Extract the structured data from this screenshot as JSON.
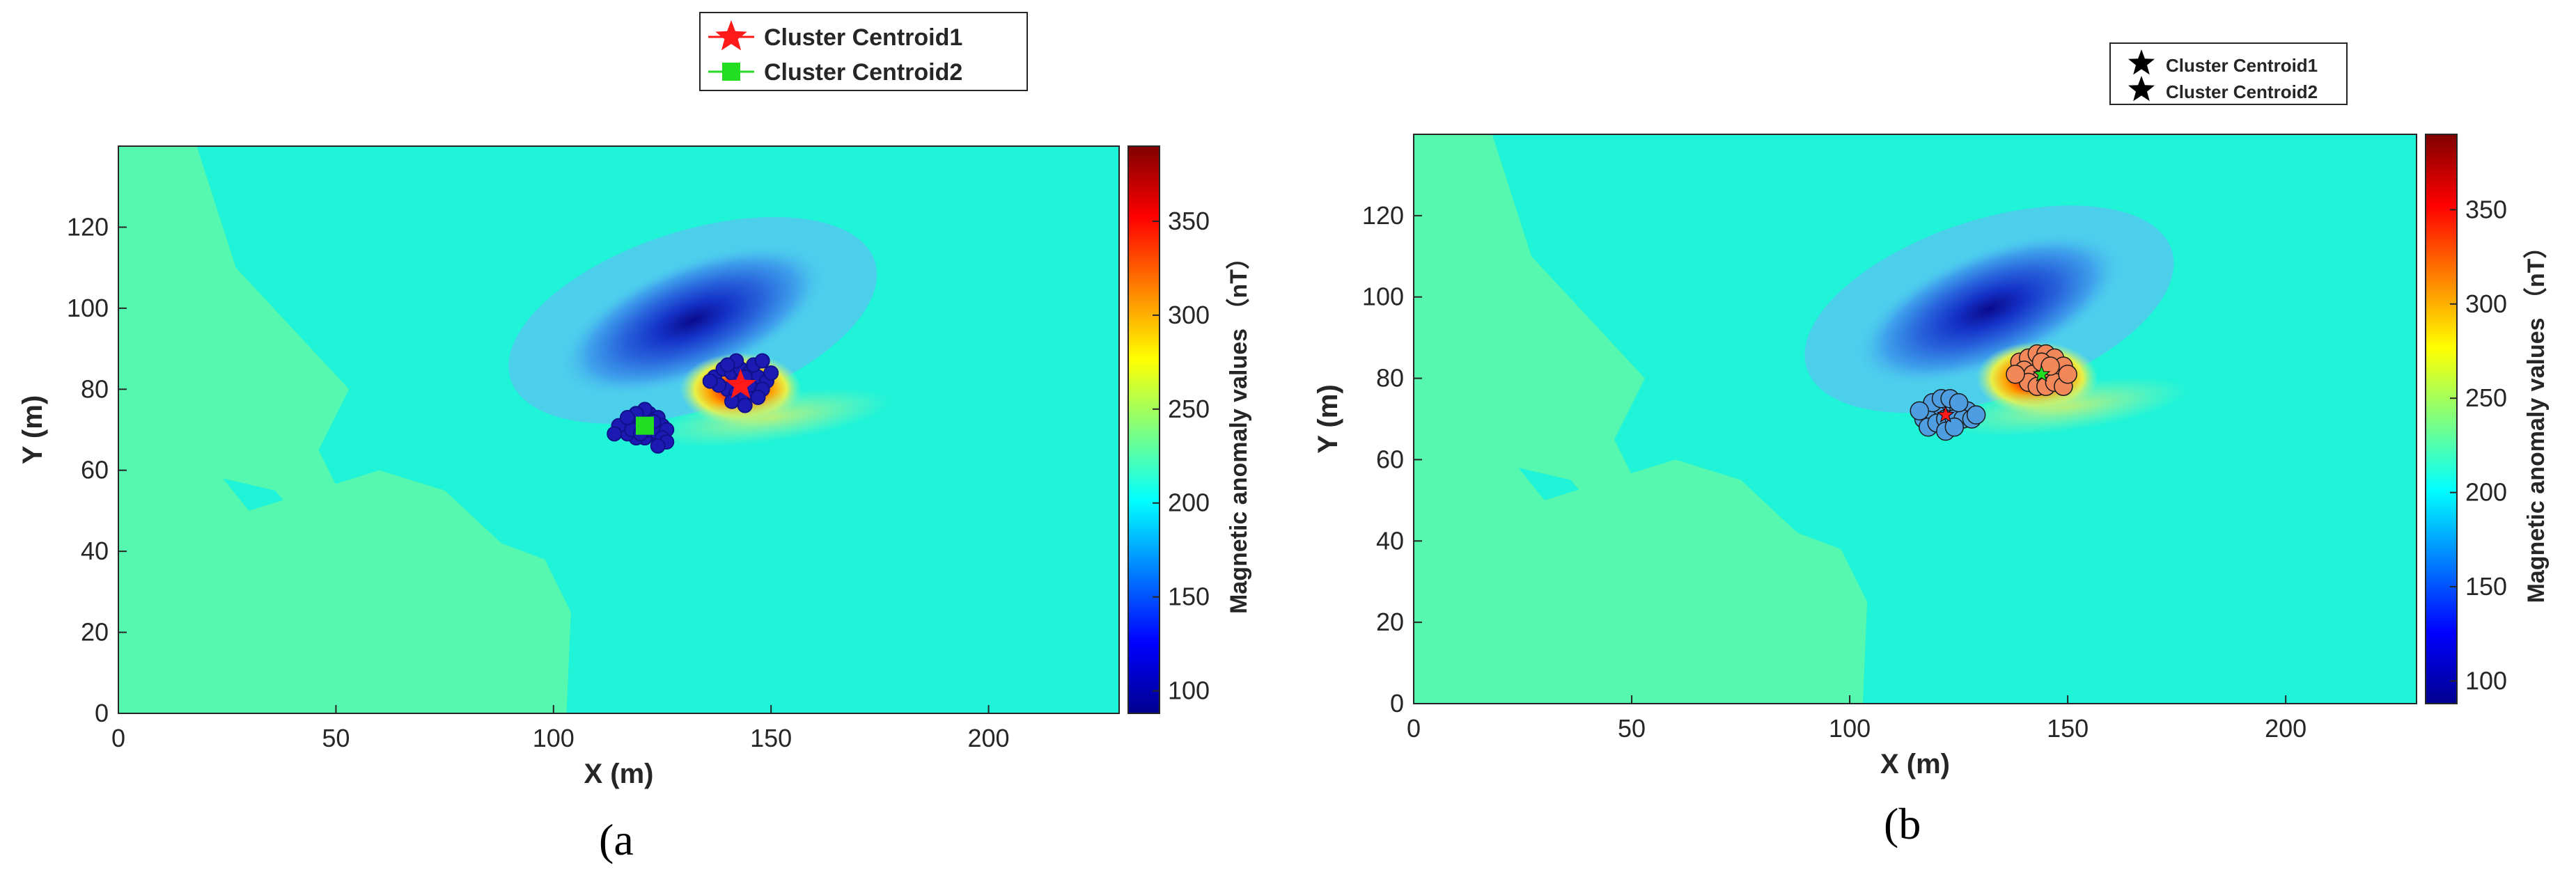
{
  "panels": [
    {
      "id": "a",
      "caption": "(a",
      "legend": [
        {
          "label": "Cluster Centroid1",
          "marker": "star",
          "color": "#ff1a1a"
        },
        {
          "label": "Cluster Centroid2",
          "marker": "square",
          "color": "#22dd22"
        }
      ]
    },
    {
      "id": "b",
      "caption": "(b",
      "legend": [
        {
          "label": "Cluster Centroid1",
          "marker": "star",
          "color": "#000000"
        },
        {
          "label": "Cluster Centroid2",
          "marker": "star",
          "color": "#000000"
        }
      ]
    }
  ],
  "chart_data": [
    {
      "type": "heatmap",
      "panel": "a",
      "title": "",
      "xlabel": "X (m)",
      "ylabel": "Y (m)",
      "xlim": [
        0,
        230
      ],
      "ylim": [
        0,
        140
      ],
      "xticks": [
        0,
        50,
        100,
        150,
        200
      ],
      "yticks": [
        0,
        20,
        40,
        60,
        80,
        100,
        120
      ],
      "colorbar": {
        "label": "Magnetic anomaly values （nT）",
        "range": [
          88,
          390
        ],
        "ticks": [
          100,
          150,
          200,
          250,
          300,
          350
        ],
        "colormap": "jet"
      },
      "background_value": 205,
      "anomalies": [
        {
          "kind": "low",
          "center": [
            132,
            97
          ],
          "value": 92
        },
        {
          "kind": "high",
          "center": [
            143,
            80
          ],
          "value": 390
        },
        {
          "kind": "moderate",
          "center": [
            128,
            68
          ],
          "value": 235
        }
      ],
      "cluster_points": [
        {
          "cluster": 1,
          "color": "#1b1bb4",
          "points": [
            [
              137,
              83
            ],
            [
              139,
              85
            ],
            [
              141,
              84
            ],
            [
              143,
              85
            ],
            [
              145,
              84
            ],
            [
              147,
              83
            ],
            [
              149,
              82
            ],
            [
              140,
              80
            ],
            [
              142,
              79
            ],
            [
              144,
              78
            ],
            [
              146,
              79
            ],
            [
              148,
              80
            ],
            [
              138,
              81
            ],
            [
              143,
              82
            ],
            [
              145,
              81
            ],
            [
              141,
              77
            ],
            [
              144,
              76
            ],
            [
              147,
              78
            ],
            [
              150,
              84
            ],
            [
              136,
              82
            ],
            [
              142,
              87
            ],
            [
              146,
              86
            ],
            [
              148,
              87
            ],
            [
              140,
              86
            ],
            [
              144,
              83
            ]
          ]
        },
        {
          "cluster": 2,
          "color": "#1b1bb4",
          "points": [
            [
              116,
              70
            ],
            [
              118,
              72
            ],
            [
              120,
              73
            ],
            [
              122,
              74
            ],
            [
              124,
              73
            ],
            [
              125,
              71
            ],
            [
              123,
              69
            ],
            [
              121,
              68
            ],
            [
              119,
              68
            ],
            [
              117,
              69
            ],
            [
              115,
              71
            ],
            [
              120,
              71
            ],
            [
              122,
              70
            ],
            [
              124,
              69
            ],
            [
              118,
              70
            ],
            [
              123,
              72
            ],
            [
              126,
              70
            ],
            [
              121,
              75
            ],
            [
              119,
              74
            ],
            [
              117,
              73
            ],
            [
              114,
              69
            ],
            [
              125,
              68
            ],
            [
              126,
              67
            ],
            [
              124,
              66
            ],
            [
              120,
              69
            ]
          ]
        }
      ],
      "centroids": [
        {
          "label": "Cluster Centroid1",
          "x": 143,
          "y": 81
        },
        {
          "label": "Cluster Centroid2",
          "x": 121,
          "y": 71
        }
      ]
    },
    {
      "type": "heatmap",
      "panel": "b",
      "title": "",
      "xlabel": "X (m)",
      "ylabel": "Y (m)",
      "xlim": [
        0,
        230
      ],
      "ylim": [
        0,
        140
      ],
      "xticks": [
        0,
        50,
        100,
        150,
        200
      ],
      "yticks": [
        0,
        20,
        40,
        60,
        80,
        100,
        120
      ],
      "colorbar": {
        "label": "Magnetic anomaly values （nT）",
        "range": [
          88,
          390
        ],
        "ticks": [
          100,
          150,
          200,
          250,
          300,
          350
        ],
        "colormap": "jet"
      },
      "background_value": 205,
      "anomalies": [
        {
          "kind": "low",
          "center": [
            132,
            97
          ],
          "value": 92
        },
        {
          "kind": "high",
          "center": [
            143,
            80
          ],
          "value": 390
        },
        {
          "kind": "moderate",
          "center": [
            128,
            68
          ],
          "value": 235
        }
      ],
      "cluster_points": [
        {
          "cluster": 1,
          "color": "#f2875a",
          "points": [
            [
              139,
              84
            ],
            [
              141,
              85
            ],
            [
              143,
              86
            ],
            [
              145,
              86
            ],
            [
              147,
              85
            ],
            [
              149,
              83
            ],
            [
              140,
              82
            ],
            [
              142,
              81
            ],
            [
              144,
              80
            ],
            [
              146,
              81
            ],
            [
              148,
              80
            ],
            [
              141,
              79
            ],
            [
              143,
              78
            ],
            [
              145,
              78
            ],
            [
              147,
              79
            ],
            [
              149,
              78
            ],
            [
              138,
              81
            ],
            [
              150,
              81
            ],
            [
              144,
              84
            ],
            [
              146,
              83
            ]
          ]
        },
        {
          "cluster": 2,
          "color": "#4d9de0",
          "points": [
            [
              117,
              70
            ],
            [
              119,
              72
            ],
            [
              121,
              73
            ],
            [
              123,
              74
            ],
            [
              125,
              73
            ],
            [
              127,
              72
            ],
            [
              118,
              68
            ],
            [
              120,
              69
            ],
            [
              122,
              70
            ],
            [
              124,
              70
            ],
            [
              126,
              70
            ],
            [
              128,
              70
            ],
            [
              119,
              74
            ],
            [
              121,
              75
            ],
            [
              123,
              75
            ],
            [
              125,
              74
            ],
            [
              116,
              72
            ],
            [
              129,
              71
            ],
            [
              122,
              67
            ],
            [
              124,
              68
            ]
          ]
        }
      ],
      "centroids": [
        {
          "label": "Cluster Centroid1",
          "x": 122,
          "y": 71,
          "color": "#ff1a1a"
        },
        {
          "label": "Cluster Centroid2",
          "x": 144,
          "y": 81,
          "color": "#22dd22"
        }
      ]
    }
  ]
}
